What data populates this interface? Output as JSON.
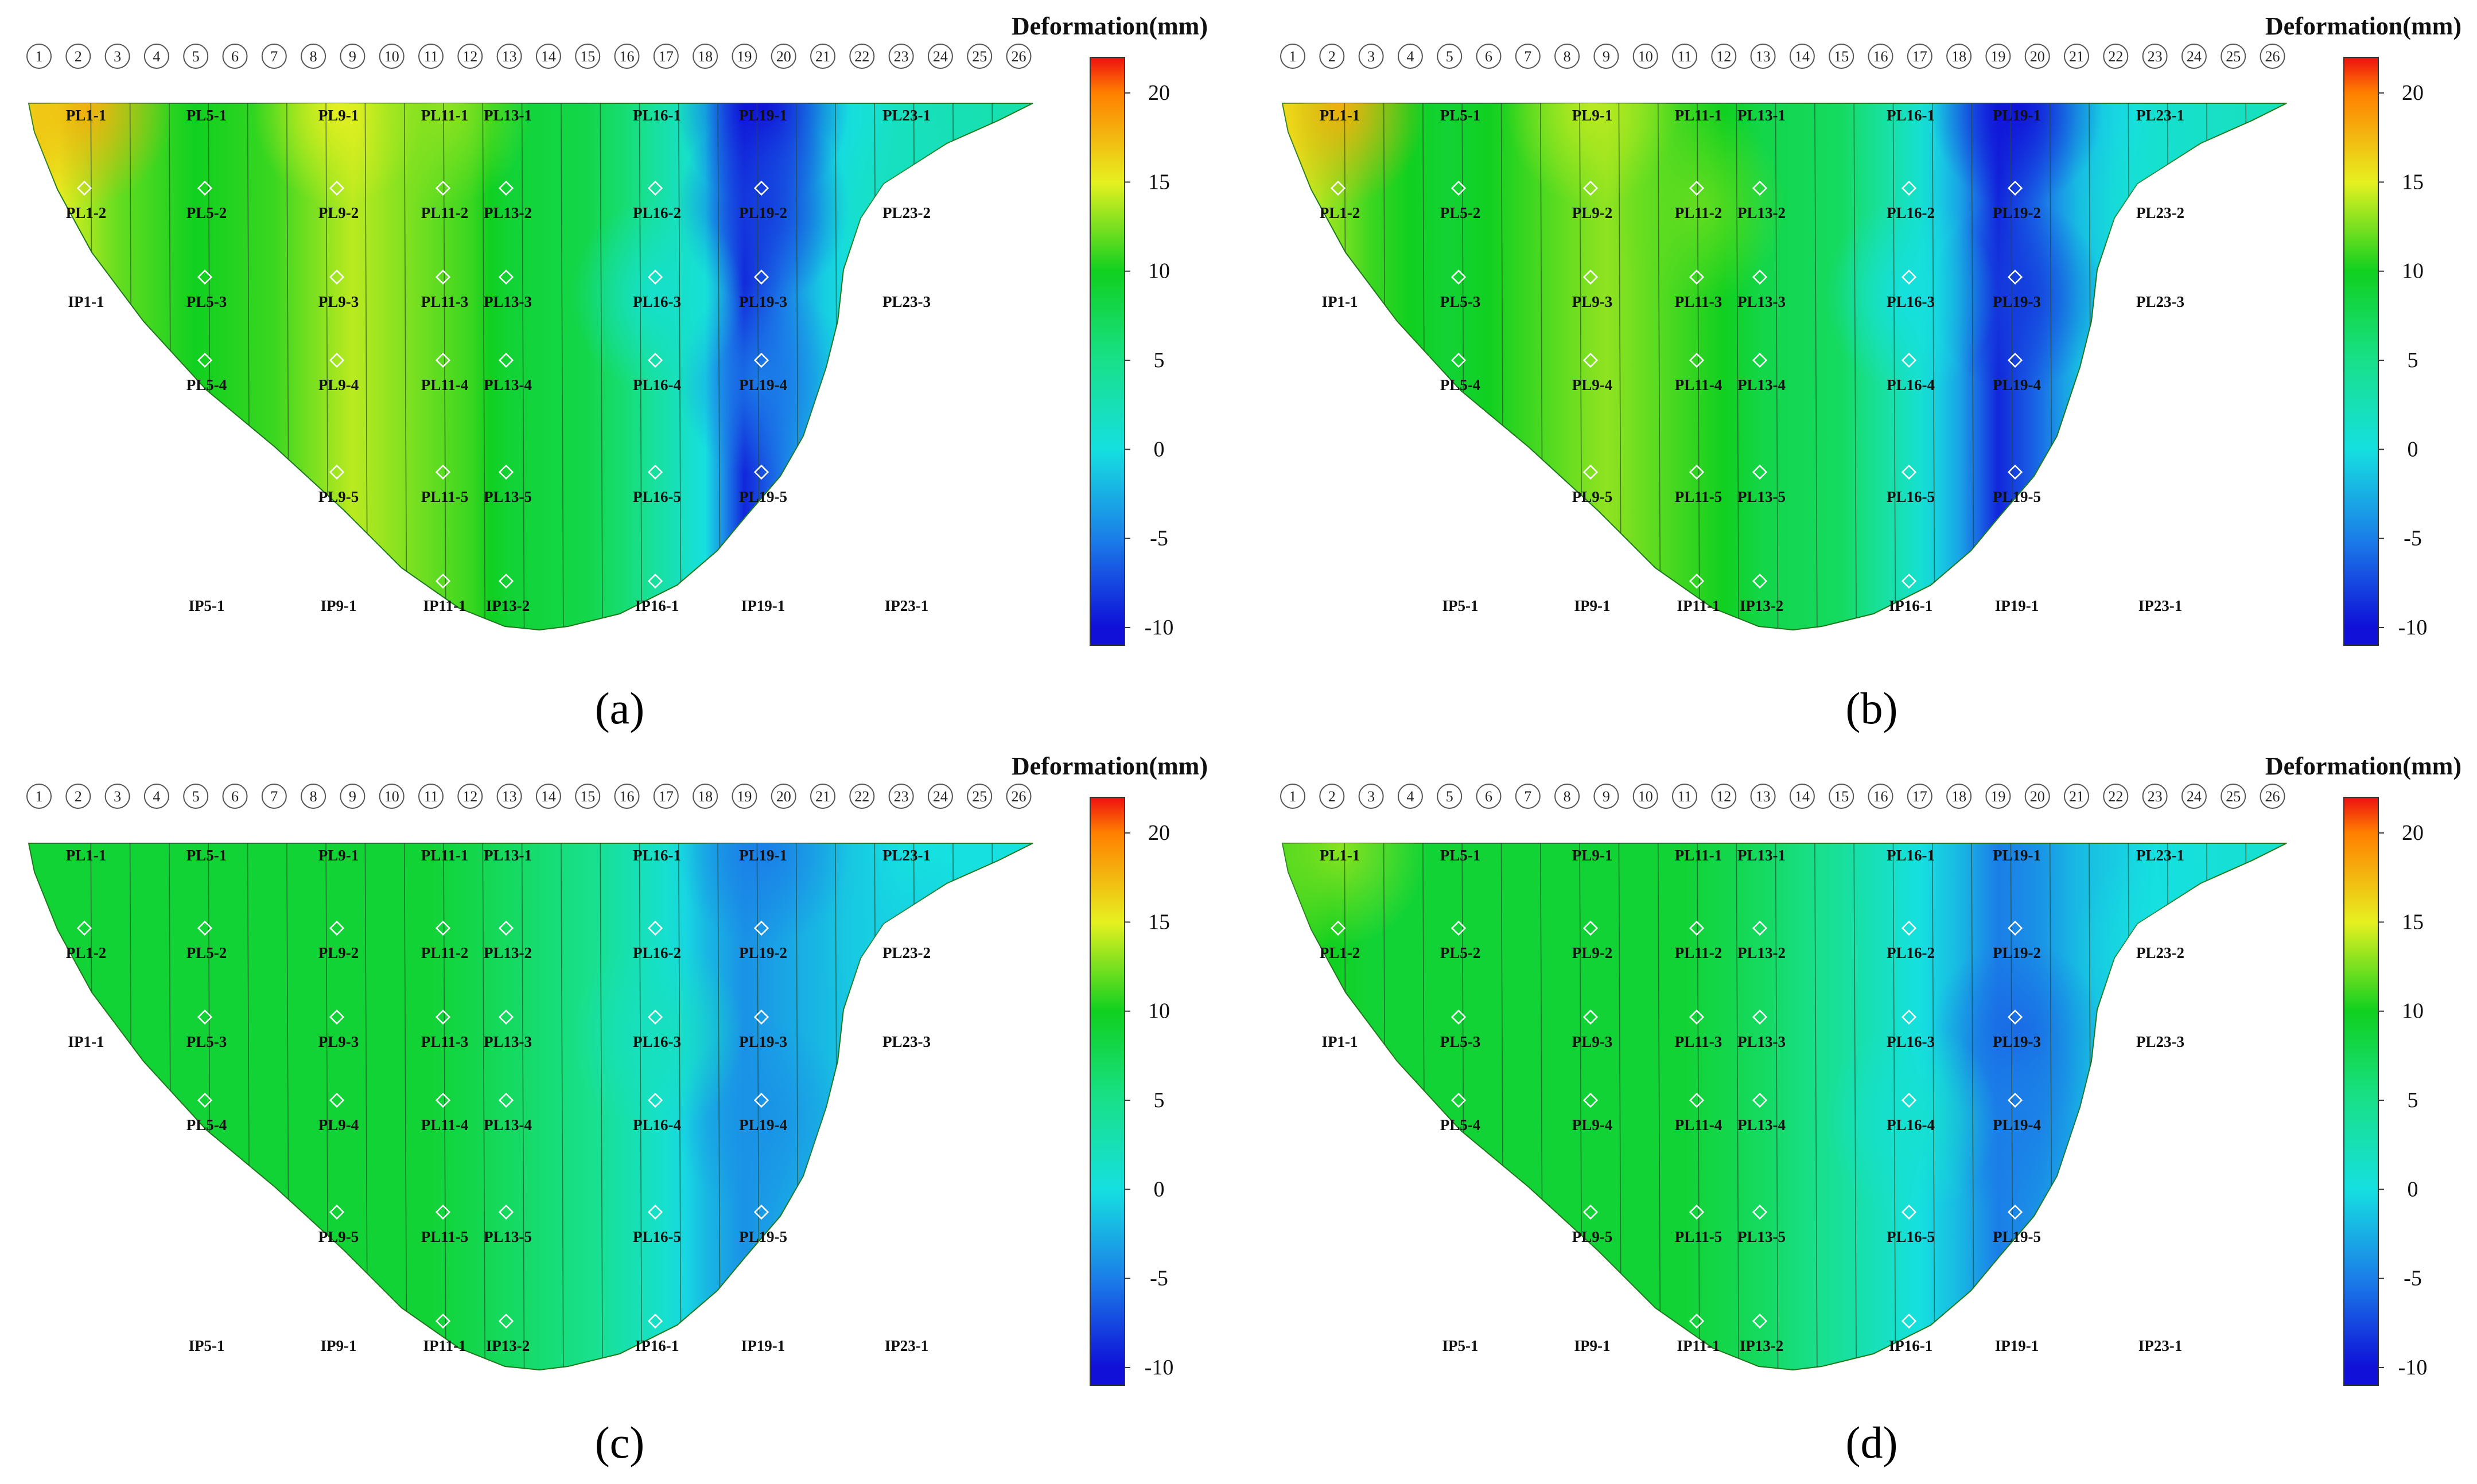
{
  "figure": {
    "colorbar_title": "Deformation(mm)",
    "colorbar_ticks": [
      20,
      15,
      10,
      5,
      0,
      -5,
      -10
    ],
    "colorbar_range": [
      -11,
      22
    ],
    "section_numbers": [
      "1",
      "2",
      "3",
      "4",
      "5",
      "6",
      "7",
      "8",
      "9",
      "10",
      "11",
      "12",
      "13",
      "14",
      "15",
      "16",
      "17",
      "18",
      "19",
      "20",
      "21",
      "22",
      "23",
      "24",
      "25",
      "26"
    ],
    "labels": {
      "row1": [
        "PL1-1",
        "PL5-1",
        "PL9-1",
        "PL11-1",
        "PL13-1",
        "PL16-1",
        "PL19-1",
        "PL23-1"
      ],
      "row2": [
        "PL1-2",
        "PL5-2",
        "PL9-2",
        "PL11-2",
        "PL13-2",
        "PL16-2",
        "PL19-2",
        "PL23-2"
      ],
      "row3": [
        "IP1-1",
        "PL5-3",
        "PL9-3",
        "PL11-3",
        "PL13-3",
        "PL16-3",
        "PL19-3",
        "PL23-3"
      ],
      "row4": [
        "PL5-4",
        "PL9-4",
        "PL11-4",
        "PL13-4",
        "PL16-4",
        "PL19-4"
      ],
      "row5": [
        "PL9-5",
        "PL11-5",
        "PL13-5",
        "PL16-5",
        "PL19-5"
      ],
      "row6": [
        "IP5-1",
        "IP9-1",
        "IP11-1",
        "IP13-2",
        "IP16-1",
        "IP19-1",
        "IP23-1"
      ]
    },
    "colors": {
      "c_neg10": "#1010d8",
      "c_neg5": "#1b7ee8",
      "c_0": "#16e0e0",
      "c_5": "#18e08a",
      "c_10": "#10d020",
      "c_15": "#e6f020",
      "c_20": "#ff8000",
      "c_max": "#ee1010"
    }
  },
  "chart_data": [
    {
      "type": "heatmap",
      "panel": "(a)",
      "colorbar_title": "Deformation(mm)",
      "zlim": [
        -11,
        22
      ],
      "x_labels": [
        "1",
        "2",
        "3",
        "4",
        "5",
        "6",
        "7",
        "8",
        "9",
        "10",
        "11",
        "12",
        "13",
        "14",
        "15",
        "16",
        "17",
        "18",
        "19",
        "20",
        "21",
        "22",
        "23",
        "24",
        "25",
        "26"
      ],
      "field_by_section": {
        "x": [
          1,
          3,
          5,
          7,
          9,
          11,
          12,
          13,
          15,
          16,
          17,
          18,
          19,
          20,
          21,
          23,
          26
        ],
        "values": [
          16,
          12,
          10,
          11,
          14,
          12,
          11,
          9,
          8,
          6,
          3,
          0,
          -9,
          -5,
          -1,
          2,
          3
        ]
      },
      "points": [
        {
          "label": "PL1-1",
          "value": 18
        },
        {
          "label": "PL9-1",
          "value": 15
        },
        {
          "label": "PL11-1",
          "value": 13
        },
        {
          "label": "PL19-1",
          "value": -10
        },
        {
          "label": "PL19-2",
          "value": -8
        },
        {
          "label": "PL19-4",
          "value": -5
        },
        {
          "label": "PL16-3",
          "value": 1
        },
        {
          "label": "PL23-2",
          "value": 2
        }
      ]
    },
    {
      "type": "heatmap",
      "panel": "(b)",
      "colorbar_title": "Deformation(mm)",
      "zlim": [
        -11,
        22
      ],
      "x_labels": [
        "1",
        "2",
        "3",
        "4",
        "5",
        "6",
        "7",
        "8",
        "9",
        "10",
        "11",
        "12",
        "13",
        "14",
        "15",
        "16",
        "17",
        "18",
        "19",
        "20",
        "21",
        "22",
        "23",
        "24",
        "25",
        "26"
      ],
      "field_by_section": {
        "x": [
          1,
          3,
          5,
          7,
          9,
          11,
          12,
          13,
          15,
          16,
          17,
          18,
          19,
          20,
          21,
          23,
          26
        ],
        "values": [
          15,
          11,
          9,
          11,
          13,
          11,
          10,
          8,
          7,
          4,
          1,
          -3,
          -9,
          -6,
          -2,
          1,
          2
        ]
      },
      "points": [
        {
          "label": "PL1-1",
          "value": 18
        },
        {
          "label": "PL9-1",
          "value": 14
        },
        {
          "label": "PL11-2",
          "value": 12
        },
        {
          "label": "PL19-1",
          "value": -10
        },
        {
          "label": "PL19-3",
          "value": -8
        },
        {
          "label": "PL16-3",
          "value": 0
        },
        {
          "label": "PL23-2",
          "value": 1
        }
      ]
    },
    {
      "type": "heatmap",
      "panel": "(c)",
      "colorbar_title": "Deformation(mm)",
      "zlim": [
        -11,
        22
      ],
      "x_labels": [
        "1",
        "2",
        "3",
        "4",
        "5",
        "6",
        "7",
        "8",
        "9",
        "10",
        "11",
        "12",
        "13",
        "14",
        "15",
        "16",
        "17",
        "18",
        "19",
        "20",
        "21",
        "22",
        "23",
        "24",
        "25",
        "26"
      ],
      "field_by_section": {
        "x": [
          1,
          3,
          5,
          7,
          9,
          11,
          12,
          13,
          15,
          16,
          17,
          18,
          19,
          20,
          21,
          23,
          26
        ],
        "values": [
          9,
          9,
          9,
          9,
          9,
          9,
          8,
          7,
          5,
          3,
          1,
          -2,
          -4,
          -3,
          -2,
          0,
          0
        ]
      },
      "points": [
        {
          "label": "PL19-1",
          "value": -5
        },
        {
          "label": "PL19-4",
          "value": -4
        },
        {
          "label": "PL16-3",
          "value": 2
        },
        {
          "label": "PL23-2",
          "value": -1
        }
      ]
    },
    {
      "type": "heatmap",
      "panel": "(d)",
      "colorbar_title": "Deformation(mm)",
      "zlim": [
        -11,
        22
      ],
      "x_labels": [
        "1",
        "2",
        "3",
        "4",
        "5",
        "6",
        "7",
        "8",
        "9",
        "10",
        "11",
        "12",
        "13",
        "14",
        "15",
        "16",
        "17",
        "18",
        "19",
        "20",
        "21",
        "22",
        "23",
        "24",
        "25",
        "26"
      ],
      "field_by_section": {
        "x": [
          1,
          3,
          5,
          7,
          9,
          11,
          12,
          13,
          15,
          16,
          17,
          18,
          19,
          20,
          21,
          23,
          26
        ],
        "values": [
          11,
          9,
          9,
          9,
          9,
          9,
          8,
          7,
          4,
          2,
          0,
          -2,
          -5,
          -4,
          -2,
          0,
          1
        ]
      },
      "points": [
        {
          "label": "PL1-1",
          "value": 13
        },
        {
          "label": "PL19-3",
          "value": -6
        },
        {
          "label": "PL19-4",
          "value": -5
        },
        {
          "label": "PL16-4",
          "value": 1
        },
        {
          "label": "PL23-2",
          "value": 0
        }
      ]
    }
  ]
}
